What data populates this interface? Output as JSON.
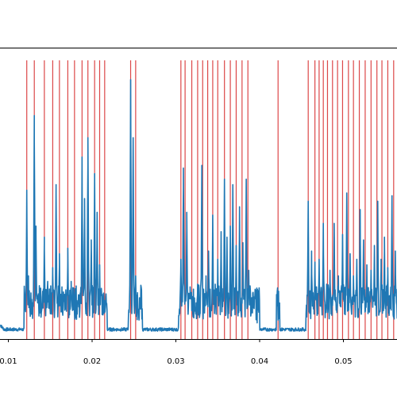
{
  "chart_data": {
    "type": "line",
    "title": "",
    "xlabel": "",
    "ylabel": "",
    "xlim": [
      0.0089,
      0.0571
    ],
    "ylim": [
      0.0,
      1.0
    ],
    "grid": false,
    "x_ticks": [
      {
        "value": 0.01,
        "label": "0.01"
      },
      {
        "value": 0.02,
        "label": "0.02"
      },
      {
        "value": 0.03,
        "label": "0.03"
      },
      {
        "value": 0.04,
        "label": "0.04"
      },
      {
        "value": 0.05,
        "label": "0.05"
      }
    ],
    "colors": {
      "signal": "#1f77b4",
      "markers": "#d62728",
      "axes": "#000000"
    },
    "event_markers": [
      0.0122,
      0.0131,
      0.0143,
      0.0153,
      0.0161,
      0.0171,
      0.0179,
      0.0188,
      0.0195,
      0.0203,
      0.0209,
      0.0215,
      0.0246,
      0.0252,
      0.0306,
      0.0311,
      0.0319,
      0.0326,
      0.0332,
      0.0338,
      0.0344,
      0.035,
      0.0358,
      0.0365,
      0.0372,
      0.0379,
      0.0386,
      0.0422,
      0.0458,
      0.0466,
      0.0471,
      0.0476,
      0.0481,
      0.0487,
      0.0493,
      0.0499,
      0.0506,
      0.0512,
      0.0519,
      0.0526,
      0.0533,
      0.054,
      0.0546,
      0.0553,
      0.056,
      0.0567
    ],
    "signal": {
      "baseline": 0.02,
      "peaks": [
        [
          0.0122,
          0.53
        ],
        [
          0.0124,
          0.22
        ],
        [
          0.0131,
          0.8
        ],
        [
          0.0133,
          0.4
        ],
        [
          0.0136,
          0.12
        ],
        [
          0.0143,
          0.36
        ],
        [
          0.0147,
          0.2
        ],
        [
          0.0153,
          0.25
        ],
        [
          0.0157,
          0.55
        ],
        [
          0.0161,
          0.3
        ],
        [
          0.0164,
          0.18
        ],
        [
          0.0171,
          0.32
        ],
        [
          0.0175,
          0.2
        ],
        [
          0.0188,
          0.65
        ],
        [
          0.0191,
          0.5
        ],
        [
          0.0195,
          0.72
        ],
        [
          0.0199,
          0.35
        ],
        [
          0.0203,
          0.59
        ],
        [
          0.0206,
          0.45
        ],
        [
          0.0209,
          0.26
        ],
        [
          0.0212,
          0.08
        ],
        [
          0.0246,
          0.93
        ],
        [
          0.0249,
          0.72
        ],
        [
          0.0252,
          0.22
        ],
        [
          0.0256,
          0.06
        ],
        [
          0.0306,
          0.28
        ],
        [
          0.0309,
          0.61
        ],
        [
          0.0313,
          0.45
        ],
        [
          0.0317,
          0.18
        ],
        [
          0.0326,
          0.19
        ],
        [
          0.0331,
          0.62
        ],
        [
          0.0336,
          0.22
        ],
        [
          0.0339,
          0.31
        ],
        [
          0.0344,
          0.44
        ],
        [
          0.0347,
          0.19
        ],
        [
          0.035,
          0.28
        ],
        [
          0.0354,
          0.38
        ],
        [
          0.0358,
          0.57
        ],
        [
          0.0361,
          0.36
        ],
        [
          0.0365,
          0.4
        ],
        [
          0.0368,
          0.55
        ],
        [
          0.0372,
          0.33
        ],
        [
          0.0376,
          0.47
        ],
        [
          0.038,
          0.34
        ],
        [
          0.0384,
          0.57
        ],
        [
          0.0387,
          0.24
        ],
        [
          0.0391,
          0.12
        ],
        [
          0.0397,
          0.05
        ],
        [
          0.0422,
          0.06
        ],
        [
          0.0458,
          0.49
        ],
        [
          0.0462,
          0.31
        ],
        [
          0.0466,
          0.27
        ],
        [
          0.0471,
          0.28
        ],
        [
          0.0476,
          0.41
        ],
        [
          0.048,
          0.19
        ],
        [
          0.0484,
          0.24
        ],
        [
          0.0489,
          0.41
        ],
        [
          0.0494,
          0.22
        ],
        [
          0.0499,
          0.37
        ],
        [
          0.0504,
          0.52
        ],
        [
          0.0508,
          0.3
        ],
        [
          0.0512,
          0.22
        ],
        [
          0.0516,
          0.28
        ],
        [
          0.052,
          0.46
        ],
        [
          0.0524,
          0.35
        ],
        [
          0.0528,
          0.26
        ],
        [
          0.0533,
          0.24
        ],
        [
          0.0537,
          0.33
        ],
        [
          0.0541,
          0.49
        ],
        [
          0.0545,
          0.28
        ],
        [
          0.0549,
          0.36
        ],
        [
          0.0553,
          0.25
        ],
        [
          0.0558,
          0.51
        ],
        [
          0.0562,
          0.31
        ],
        [
          0.0567,
          0.19
        ]
      ]
    }
  }
}
